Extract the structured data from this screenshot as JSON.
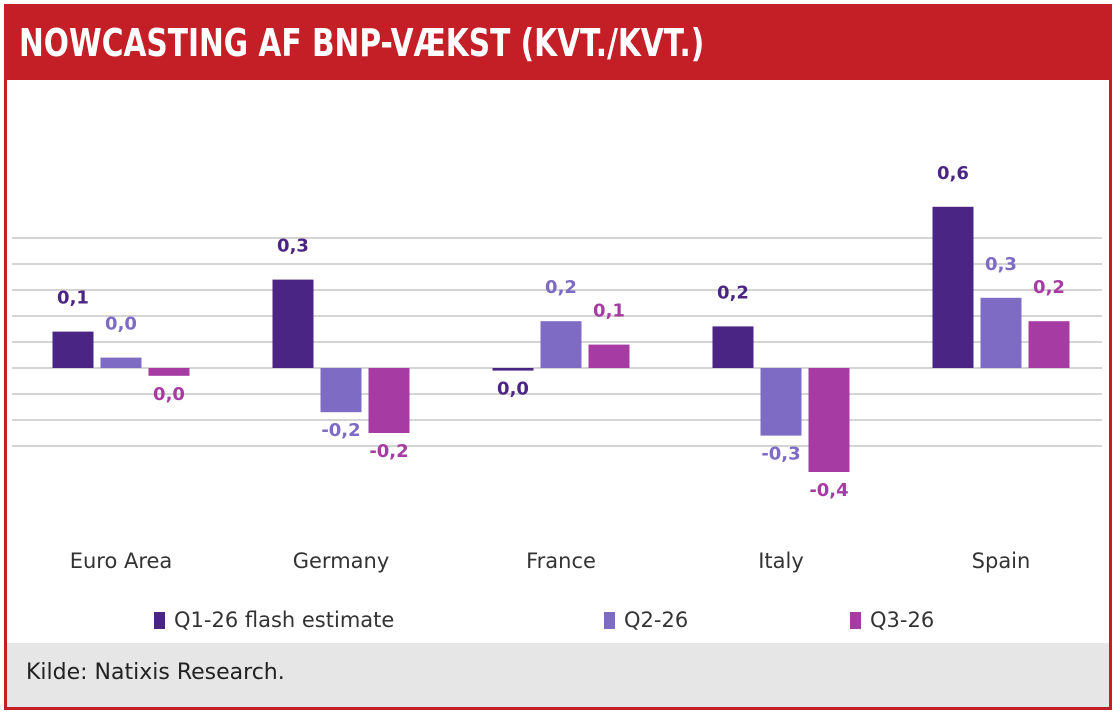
{
  "header": {
    "title": "NOWCASTING AF BNP-VÆKST (KVT./KVT.)"
  },
  "footer": {
    "source": "Kilde:  Natixis Research."
  },
  "colors": {
    "frame": "#c41e26",
    "q1": "#4a2583",
    "q2": "#7d6bc4",
    "q3": "#a63ba3",
    "grid": "#d4d4d4",
    "footer_bg": "#e6e6e6"
  },
  "chart_data": {
    "type": "bar",
    "categories": [
      "Euro Area",
      "Germany",
      "France",
      "Italy",
      "Spain"
    ],
    "series": [
      {
        "name": "Q1-26 flash estimate",
        "color": "#4a2583",
        "values": [
          0.07,
          0.17,
          -0.005,
          0.08,
          0.31
        ],
        "labels": [
          "0,1",
          "0,3",
          "0,0",
          "0,2",
          "0,6"
        ]
      },
      {
        "name": "Q2-26",
        "color": "#7d6bc4",
        "values": [
          0.02,
          -0.085,
          0.09,
          -0.13,
          0.135
        ],
        "labels": [
          "0,0",
          "-0,2",
          "0,2",
          "-0,3",
          "0,3"
        ]
      },
      {
        "name": "Q3-26",
        "color": "#a63ba3",
        "values": [
          -0.015,
          -0.125,
          0.045,
          -0.2,
          0.09
        ],
        "labels": [
          "0,0",
          "-0,2",
          "0,1",
          "-0,4",
          "0,2"
        ]
      }
    ],
    "ylim": [
      -0.3,
      0.4
    ],
    "grid": true,
    "legend": "bottom"
  }
}
